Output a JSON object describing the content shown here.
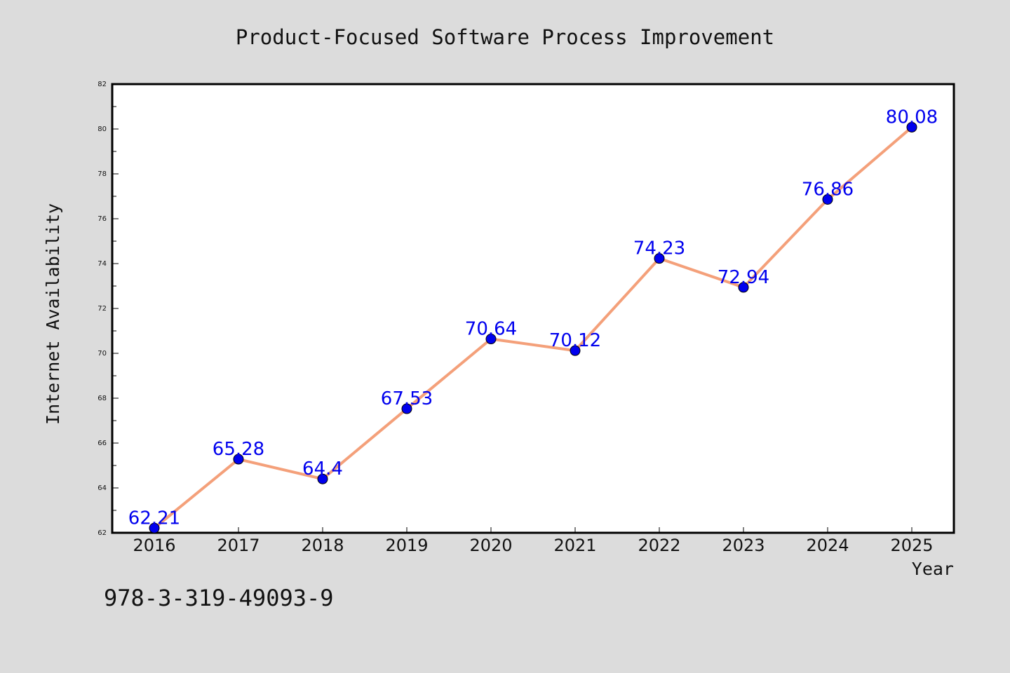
{
  "chart_data": {
    "type": "line",
    "title": "Product-Focused Software Process Improvement",
    "xlabel": "Year",
    "ylabel": "Internet Availability",
    "categories": [
      "2016",
      "2017",
      "2018",
      "2019",
      "2020",
      "2021",
      "2022",
      "2023",
      "2024",
      "2025"
    ],
    "series": [
      {
        "values": [
          62.21,
          65.28,
          64.4,
          67.53,
          70.64,
          70.12,
          74.23,
          72.94,
          76.86,
          80.08
        ],
        "data_labels": [
          "62.21",
          "65.28",
          "64.4",
          "67.53",
          "70.64",
          "70.12",
          "74.23",
          "72.94",
          "76.86",
          "80.08"
        ],
        "line_color": "#f4a07a",
        "marker_color": "#0000ee"
      }
    ],
    "ylim": [
      62,
      82
    ],
    "yticks": [
      "62",
      "64",
      "66",
      "68",
      "70",
      "72",
      "74",
      "76",
      "78",
      "80",
      "82"
    ],
    "grid": false,
    "legend": "none"
  },
  "footnote": "978-3-319-49093-9",
  "colors": {
    "background": "#dcdcdc",
    "plot_area": "#ffffff",
    "label_text": "#0000ee"
  }
}
